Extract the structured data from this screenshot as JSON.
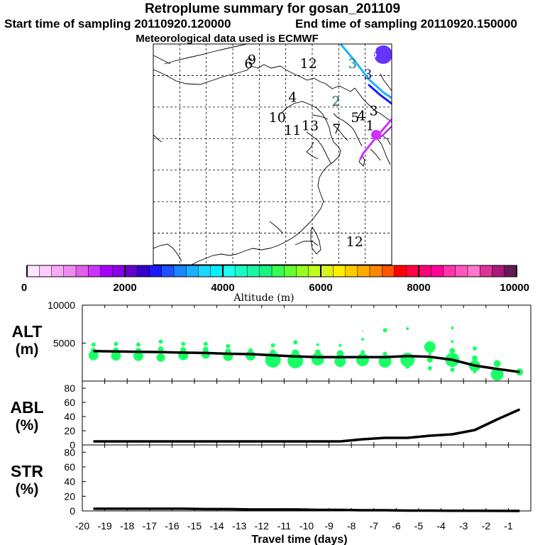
{
  "header": {
    "title": "Retroplume summary for gosan_201109",
    "start_label": "Start time of sampling 20110920.120000",
    "end_label": "End time of sampling 20110920.150000",
    "met_label": "Meteorological data used is ECMWF"
  },
  "map": {
    "cluster_labels": [
      {
        "text": "6",
        "lon": 98.0,
        "lat": 51.2,
        "color": "#000000"
      },
      {
        "text": "9",
        "lon": 98.6,
        "lat": 51.8,
        "color": "#000000"
      },
      {
        "text": "12",
        "lon": 109.3,
        "lat": 51.2,
        "color": "#000000"
      },
      {
        "text": "3",
        "lon": 117.6,
        "lat": 51.2,
        "color": "#1a8080"
      },
      {
        "text": "3",
        "lon": 120.5,
        "lat": 49.5,
        "color": "#1a1a66"
      },
      {
        "text": "3",
        "lon": 121.5,
        "lat": 52.8,
        "color": "#ffffff"
      },
      {
        "text": "4",
        "lon": 106.3,
        "lat": 45.8,
        "color": "#000000"
      },
      {
        "text": "2",
        "lon": 114.5,
        "lat": 45.2,
        "color": "#0a5a5a"
      },
      {
        "text": "3",
        "lon": 121.6,
        "lat": 43.7,
        "color": "#000000"
      },
      {
        "text": "10",
        "lon": 103.4,
        "lat": 42.6,
        "color": "#000000"
      },
      {
        "text": "11",
        "lon": 106.3,
        "lat": 40.6,
        "color": "#000000"
      },
      {
        "text": "13",
        "lon": 109.6,
        "lat": 41.3,
        "color": "#000000"
      },
      {
        "text": "7",
        "lon": 114.6,
        "lat": 40.8,
        "color": "#000000"
      },
      {
        "text": "5",
        "lon": 118.1,
        "lat": 42.6,
        "color": "#000000"
      },
      {
        "text": "4",
        "lon": 119.3,
        "lat": 42.9,
        "color": "#000000"
      },
      {
        "text": "1",
        "lon": 120.9,
        "lat": 41.3,
        "color": "#000000"
      },
      {
        "text": "12",
        "lon": 118.0,
        "lat": 22.9,
        "color": "#000000"
      }
    ],
    "lon_range": [
      80,
      125
    ],
    "lat_range": [
      20,
      55
    ],
    "grid_lons": [
      85,
      90,
      95,
      100,
      105,
      110,
      115,
      120
    ],
    "grid_lats": [
      25,
      30,
      35,
      40,
      45,
      50
    ]
  },
  "colorbar": {
    "title": "Altitude (m)",
    "tick_labels": [
      "0",
      "2000",
      "4000",
      "6000",
      "8000",
      "10000"
    ],
    "colors": [
      "#ffe6ff",
      "#ffccff",
      "#f7aaf7",
      "#f08cf0",
      "#e060e6",
      "#cc33ff",
      "#a600ff",
      "#8c00e6",
      "#6600cc",
      "#3300cc",
      "#1a1aff",
      "#1a53ff",
      "#1a86ff",
      "#1ab2ff",
      "#1ad9ff",
      "#00f2ff",
      "#1afff0",
      "#1afcc8",
      "#1af7a6",
      "#1af57e",
      "#33ff55",
      "#66ff33",
      "#99ff1a",
      "#bfff1a",
      "#dcf21a",
      "#ffee00",
      "#ffcc00",
      "#ffaa00",
      "#ff8800",
      "#ff5500",
      "#ff0000",
      "#ff0044",
      "#ff0077",
      "#ff0099",
      "#ff33aa",
      "#ff55bb",
      "#ff77cc",
      "#dd3399",
      "#aa1a77",
      "#661a55"
    ]
  },
  "chart_data": [
    {
      "type": "line",
      "panel": "alt",
      "title": "ALT (m)",
      "ylabel": "ALT",
      "unit": "(m)",
      "ylim": [
        0,
        10000
      ],
      "yticks": [
        10000,
        5000
      ],
      "x": [
        -19.5,
        -18.5,
        -17.5,
        -16.5,
        -15.5,
        -14.5,
        -13.5,
        -12.5,
        -11.5,
        -10.5,
        -9.5,
        -8.5,
        -7.5,
        -6.5,
        -5.5,
        -4.5,
        -3.5,
        -2.5,
        -1.5,
        -0.5
      ],
      "values": [
        3950,
        3900,
        3850,
        3820,
        3750,
        3700,
        3600,
        3550,
        3400,
        3250,
        3150,
        3150,
        3150,
        3150,
        3300,
        3200,
        2800,
        2050,
        1600,
        1200
      ],
      "scatter": {
        "name": "plume altitudes",
        "color": "#1aff66",
        "points": [
          {
            "x": -19.5,
            "y": 3400,
            "s": 7
          },
          {
            "x": -19.5,
            "y": 4000,
            "s": 4
          },
          {
            "x": -19.5,
            "y": 4800,
            "s": 3
          },
          {
            "x": -18.5,
            "y": 3350,
            "s": 7
          },
          {
            "x": -18.5,
            "y": 4050,
            "s": 4
          },
          {
            "x": -18.5,
            "y": 4900,
            "s": 3
          },
          {
            "x": -17.5,
            "y": 3300,
            "s": 7
          },
          {
            "x": -17.5,
            "y": 4000,
            "s": 4
          },
          {
            "x": -17.5,
            "y": 4800,
            "s": 3
          },
          {
            "x": -16.5,
            "y": 3100,
            "s": 6
          },
          {
            "x": -16.5,
            "y": 4200,
            "s": 4
          },
          {
            "x": -16.5,
            "y": 5200,
            "s": 3
          },
          {
            "x": -15.5,
            "y": 3400,
            "s": 7
          },
          {
            "x": -15.5,
            "y": 4100,
            "s": 4
          },
          {
            "x": -15.5,
            "y": 4900,
            "s": 3
          },
          {
            "x": -14.5,
            "y": 3500,
            "s": 6
          },
          {
            "x": -14.5,
            "y": 4150,
            "s": 4
          },
          {
            "x": -14.5,
            "y": 4900,
            "s": 3
          },
          {
            "x": -13.5,
            "y": 3300,
            "s": 7
          },
          {
            "x": -13.5,
            "y": 3900,
            "s": 4
          },
          {
            "x": -13.5,
            "y": 4600,
            "s": 3
          },
          {
            "x": -12.5,
            "y": 3350,
            "s": 7
          },
          {
            "x": -12.5,
            "y": 4050,
            "s": 3
          },
          {
            "x": -11.5,
            "y": 2800,
            "s": 11
          },
          {
            "x": -11.5,
            "y": 3800,
            "s": 4
          },
          {
            "x": -11.5,
            "y": 4700,
            "s": 3
          },
          {
            "x": -10.5,
            "y": 2700,
            "s": 11
          },
          {
            "x": -10.5,
            "y": 3700,
            "s": 5
          },
          {
            "x": -10.5,
            "y": 5100,
            "s": 3
          },
          {
            "x": -9.5,
            "y": 2900,
            "s": 9
          },
          {
            "x": -9.5,
            "y": 3800,
            "s": 4
          },
          {
            "x": -9.5,
            "y": 4800,
            "s": 2
          },
          {
            "x": -8.5,
            "y": 2600,
            "s": 8
          },
          {
            "x": -8.5,
            "y": 3600,
            "s": 5
          },
          {
            "x": -8.5,
            "y": 4700,
            "s": 2
          },
          {
            "x": -7.5,
            "y": 2800,
            "s": 9
          },
          {
            "x": -7.5,
            "y": 3800,
            "s": 3
          },
          {
            "x": -7.5,
            "y": 5500,
            "s": 2
          },
          {
            "x": -7.5,
            "y": 6600,
            "s": 1
          },
          {
            "x": -6.5,
            "y": 2600,
            "s": 9
          },
          {
            "x": -6.5,
            "y": 3600,
            "s": 3
          },
          {
            "x": -6.5,
            "y": 6700,
            "s": 3
          },
          {
            "x": -5.5,
            "y": 2800,
            "s": 10
          },
          {
            "x": -5.5,
            "y": 1900,
            "s": 3
          },
          {
            "x": -5.5,
            "y": 6900,
            "s": 2
          },
          {
            "x": -4.5,
            "y": 4500,
            "s": 8
          },
          {
            "x": -4.5,
            "y": 2800,
            "s": 4
          },
          {
            "x": -4.5,
            "y": 1700,
            "s": 3
          },
          {
            "x": -4.5,
            "y": 3600,
            "s": 2
          },
          {
            "x": -3.5,
            "y": 2800,
            "s": 10
          },
          {
            "x": -3.5,
            "y": 4000,
            "s": 4
          },
          {
            "x": -3.5,
            "y": 1500,
            "s": 3
          },
          {
            "x": -3.5,
            "y": 5200,
            "s": 2
          },
          {
            "x": -3.5,
            "y": 7000,
            "s": 2
          },
          {
            "x": -2.5,
            "y": 2000,
            "s": 8
          },
          {
            "x": -2.5,
            "y": 3000,
            "s": 4
          },
          {
            "x": -2.5,
            "y": 4300,
            "s": 3
          },
          {
            "x": -2.5,
            "y": 1200,
            "s": 2
          },
          {
            "x": -1.5,
            "y": 900,
            "s": 9
          },
          {
            "x": -1.5,
            "y": 2300,
            "s": 5
          },
          {
            "x": -0.5,
            "y": 1200,
            "s": 5
          }
        ]
      }
    },
    {
      "type": "line",
      "panel": "abl",
      "title": "ABL (%)",
      "ylabel": "ABL",
      "unit": "(%)",
      "ylim": [
        0,
        90
      ],
      "yticks": [
        80,
        60,
        40,
        20,
        0
      ],
      "x": [
        -19.5,
        -18.5,
        -17.5,
        -16.5,
        -15.5,
        -14.5,
        -13.5,
        -12.5,
        -11.5,
        -10.5,
        -9.5,
        -8.5,
        -7.5,
        -6.5,
        -5.5,
        -4.5,
        -3.5,
        -2.5,
        -1.5,
        -0.5
      ],
      "values": [
        5,
        5,
        5,
        5,
        5,
        5,
        5,
        5,
        5,
        5,
        5,
        5,
        8,
        10,
        10,
        13,
        15,
        21,
        36,
        50
      ]
    },
    {
      "type": "line",
      "panel": "str",
      "title": "STR (%)",
      "ylabel": "STR",
      "unit": "(%)",
      "ylim": [
        0,
        90
      ],
      "yticks": [
        80,
        60,
        40,
        20,
        0
      ],
      "x": [
        -19.5,
        -18.5,
        -17.5,
        -16.5,
        -15.5,
        -14.5,
        -13.5,
        -12.5,
        -11.5,
        -10.5,
        -9.5,
        -8.5,
        -7.5,
        -6.5,
        -5.5,
        -4.5,
        -3.5,
        -2.5,
        -1.5,
        -0.5
      ],
      "values": [
        3,
        3,
        3,
        3,
        3,
        2.5,
        2.5,
        2,
        2,
        2,
        1.5,
        1.5,
        1,
        1,
        0.5,
        0.5,
        0.3,
        0.2,
        0.1,
        0
      ],
      "xlabel": "Travel time (days)",
      "xtick_labels": [
        "-20",
        "-19",
        "-18",
        "-17",
        "-16",
        "-15",
        "-14",
        "-13",
        "-12",
        "-11",
        "-10",
        "-9",
        "-8",
        "-7",
        "-6",
        "-5",
        "-4",
        "-3",
        "-2",
        "-1"
      ],
      "xlim": [
        -20,
        0
      ]
    }
  ]
}
